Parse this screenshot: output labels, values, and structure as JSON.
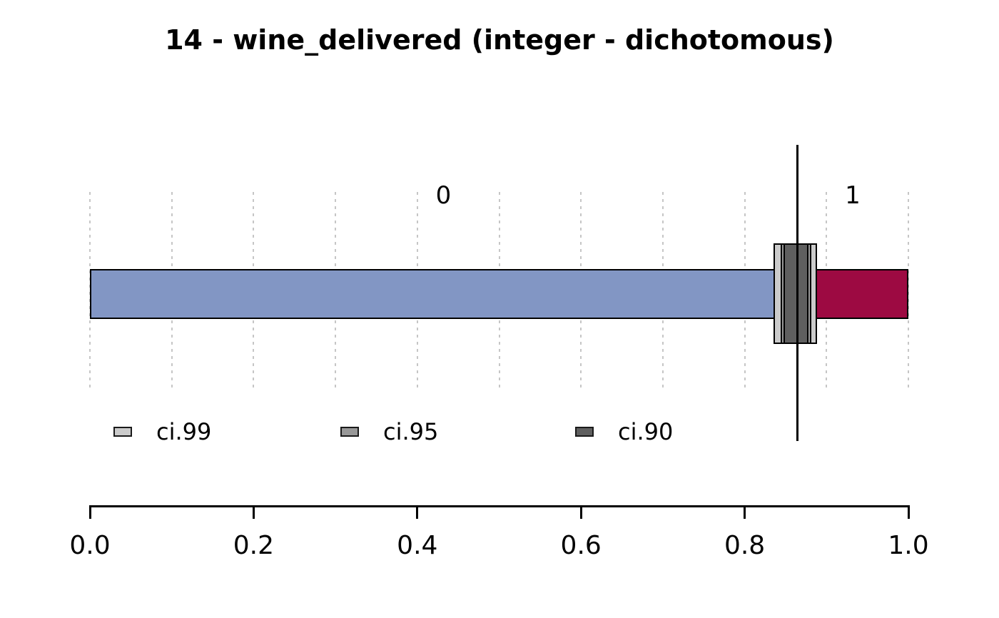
{
  "title": "14 - wine_delivered (integer - dichotomous)",
  "chart_data": {
    "type": "bar",
    "subtype": "horizontal-stacked-proportion",
    "title": "14 - wine_delivered (integer - dichotomous)",
    "categories": [
      "0",
      "1"
    ],
    "values": [
      0.864,
      0.136
    ],
    "segment_colors": [
      "#8296c4",
      "#9d0a42"
    ],
    "estimate": 0.864,
    "confidence_intervals": [
      {
        "name": "ci.99",
        "lower": 0.835,
        "upper": 0.888,
        "color": "#cbcbcb"
      },
      {
        "name": "ci.95",
        "lower": 0.844,
        "upper": 0.881,
        "color": "#989898"
      },
      {
        "name": "ci.90",
        "lower": 0.847,
        "upper": 0.878,
        "color": "#5f5f5f"
      }
    ],
    "xlim": [
      0,
      1
    ],
    "x_ticks": [
      0.0,
      0.2,
      0.4,
      0.6,
      0.8,
      1.0
    ],
    "x_tick_labels": [
      "0.0",
      "0.2",
      "0.4",
      "0.6",
      "0.8",
      "1.0"
    ],
    "gridline_step": 0.1,
    "grid": true,
    "gridline_color": "#c6c6c6",
    "axis_color": "#000000",
    "legend_position": "bottom-left-row"
  }
}
